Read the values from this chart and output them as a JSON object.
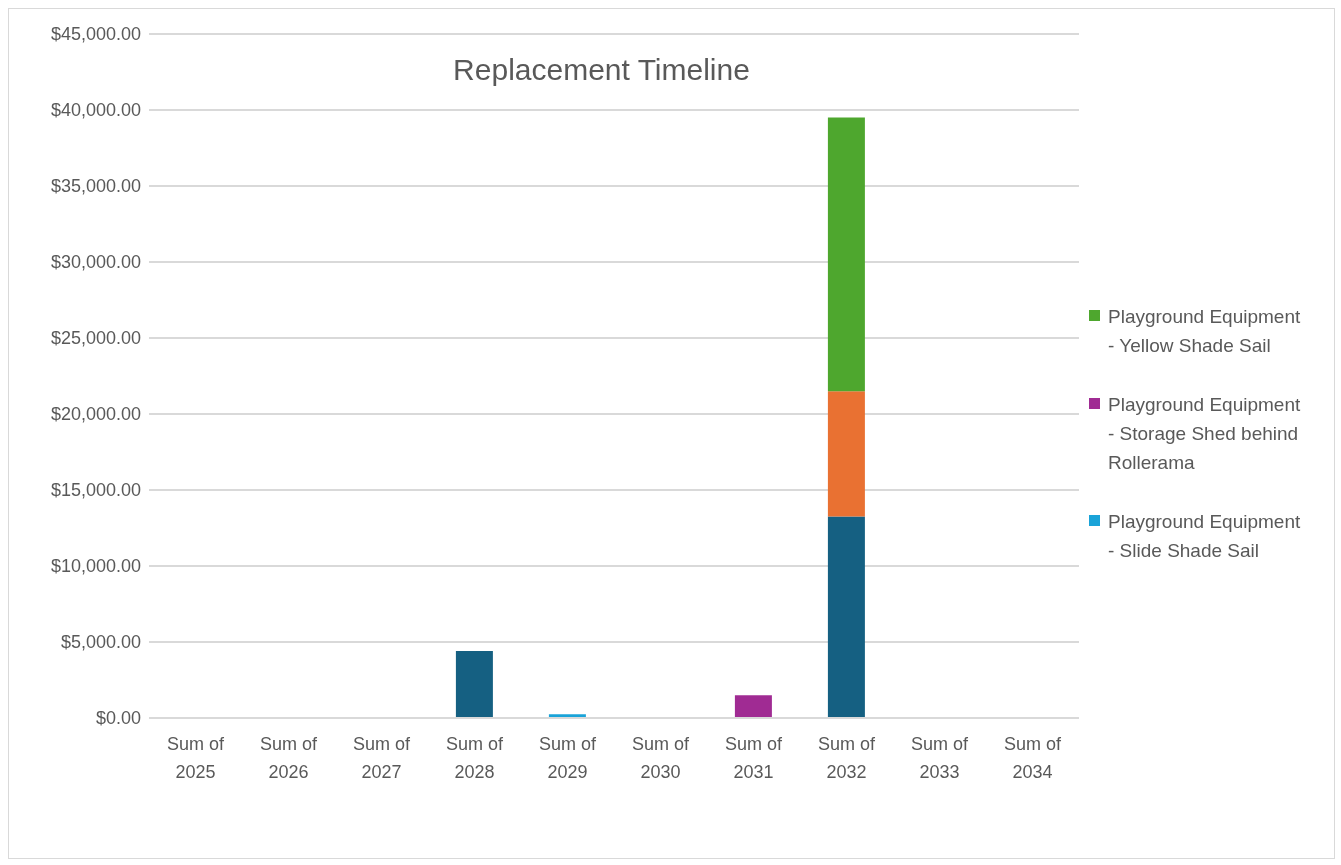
{
  "chart_data": {
    "type": "bar",
    "title": "Replacement Timeline",
    "stacked": true,
    "categories": [
      "Sum of 2025",
      "Sum of 2026",
      "Sum of 2027",
      "Sum of 2028",
      "Sum of 2029",
      "Sum of 2030",
      "Sum of 2031",
      "Sum of 2032",
      "Sum of 2033",
      "Sum of 2034"
    ],
    "series": [
      {
        "color": "#156082",
        "values": [
          null,
          null,
          null,
          4400,
          null,
          null,
          null,
          13250,
          null,
          null
        ]
      },
      {
        "color": "#e97132",
        "values": [
          null,
          null,
          null,
          null,
          null,
          null,
          null,
          8250,
          null,
          null
        ]
      },
      {
        "name": "Playground Equipment - Yellow Shade Sail",
        "color": "#4ea72e",
        "values": [
          null,
          null,
          null,
          null,
          null,
          null,
          null,
          18000,
          null,
          null
        ]
      },
      {
        "name": "Playground Equipment - Storage Shed behind Rollerama",
        "color": "#a02b93",
        "values": [
          null,
          null,
          null,
          null,
          null,
          null,
          1500,
          null,
          null,
          null
        ]
      },
      {
        "name": "Playground Equipment - Slide Shade Sail",
        "color": "#1aa3d8",
        "values": [
          null,
          null,
          null,
          null,
          250,
          null,
          null,
          null,
          null,
          null
        ]
      }
    ],
    "ylim": [
      0,
      45000
    ],
    "yticks": [
      {
        "value": 0,
        "label": "$0.00"
      },
      {
        "value": 5000,
        "label": "$5,000.00"
      },
      {
        "value": 10000,
        "label": "$10,000.00"
      },
      {
        "value": 15000,
        "label": "$15,000.00"
      },
      {
        "value": 20000,
        "label": "$20,000.00"
      },
      {
        "value": 25000,
        "label": "$25,000.00"
      },
      {
        "value": 30000,
        "label": "$30,000.00"
      },
      {
        "value": 35000,
        "label": "$35,000.00"
      },
      {
        "value": 40000,
        "label": "$40,000.00"
      },
      {
        "value": 45000,
        "label": "$45,000.00"
      }
    ],
    "grid": "y",
    "legend": "right"
  }
}
